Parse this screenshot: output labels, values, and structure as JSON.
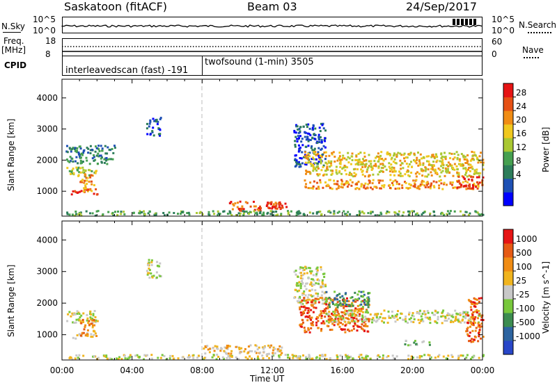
{
  "header": {
    "station": "Saskatoon (fitACF)",
    "beam": "Beam 03",
    "date": "24/Sep/2017"
  },
  "top_panels": {
    "nsky_label": "N.Sky",
    "nsky_ticks": [
      "10^5",
      "10^0"
    ],
    "nsearch_label": "N.Search",
    "nsearch_ticks": [
      "10^5",
      "10^0"
    ],
    "freq_label_1": "Freq.",
    "freq_label_2": "[MHz]",
    "freq_ticks": [
      "18",
      "8"
    ],
    "nave_label": "Nave",
    "nave_ticks": [
      "60",
      "0"
    ],
    "cpid_label": "CPID",
    "cpid_modes": [
      "interleavedscan (fast) -191",
      "twofsound (1-min) 3505"
    ]
  },
  "chart_data": [
    {
      "type": "heatmap",
      "title": "",
      "ylabel": "Slant Range [km]",
      "xlabel": "",
      "ylim": [
        200,
        4600
      ],
      "yticks": [
        1000,
        2000,
        3000,
        4000
      ],
      "xticks": [
        "00:00",
        "04:00",
        "08:00",
        "12:00",
        "16:00",
        "20:00",
        "00:00"
      ],
      "colorbar": {
        "label": "Power [dB]",
        "ticks": [
          "28",
          "24",
          "20",
          "16",
          "12",
          "8",
          "4"
        ],
        "colors": [
          "#0000ff",
          "#1e50b4",
          "#2d7d5a",
          "#46a050",
          "#aac832",
          "#f0c81e",
          "#f08c14",
          "#e65014",
          "#e61414"
        ]
      },
      "bands": [
        {
          "t0": 0.2,
          "t1": 2.0,
          "r0": 1500,
          "r1": 1800,
          "level": 4
        },
        {
          "t0": 0.5,
          "t1": 2.0,
          "r0": 900,
          "r1": 1100,
          "level": 8
        },
        {
          "t0": 1.0,
          "t1": 1.8,
          "r0": 1000,
          "r1": 1600,
          "level": 6
        },
        {
          "t0": 0.2,
          "t1": 3.0,
          "r0": 1900,
          "r1": 2500,
          "level": 2
        },
        {
          "t0": 4.8,
          "t1": 5.6,
          "r0": 2800,
          "r1": 3400,
          "level": 1
        },
        {
          "t0": 9.5,
          "t1": 12.5,
          "r0": 400,
          "r1": 700,
          "level": 7
        },
        {
          "t0": 11.5,
          "t1": 12.8,
          "r0": 450,
          "r1": 650,
          "level": 8
        },
        {
          "t0": 13.2,
          "t1": 15.0,
          "r0": 1800,
          "r1": 3200,
          "level": 1
        },
        {
          "t0": 13.8,
          "t1": 24.0,
          "r0": 1500,
          "r1": 2300,
          "level": 5
        },
        {
          "t0": 13.8,
          "t1": 24.0,
          "r0": 1100,
          "r1": 1400,
          "level": 6
        },
        {
          "t0": 22.5,
          "t1": 24.0,
          "r0": 1100,
          "r1": 1500,
          "level": 8
        },
        {
          "t0": 0.0,
          "t1": 24.0,
          "r0": 250,
          "r1": 400,
          "level": 3
        }
      ]
    },
    {
      "type": "heatmap",
      "title": "",
      "ylabel": "Slant Range [km]",
      "xlabel": "Time UT",
      "ylim": [
        200,
        4600
      ],
      "yticks": [
        1000,
        2000,
        3000,
        4000
      ],
      "xticks": [
        "00:00",
        "04:00",
        "08:00",
        "12:00",
        "16:00",
        "20:00",
        "00:00"
      ],
      "colorbar": {
        "label": "Velocity [m s^-1]",
        "ticks": [
          "1000",
          "500",
          "100",
          "25",
          "-25",
          "-100",
          "-500",
          "-1000"
        ],
        "colors": [
          "#2846c8",
          "#2d64a0",
          "#3c8c50",
          "#78c83c",
          "#c8c8c8",
          "#f0b41e",
          "#f08c14",
          "#e65a14",
          "#e61414"
        ]
      },
      "bands": [
        {
          "t0": 0.2,
          "t1": 2.0,
          "r0": 1400,
          "r1": 1800,
          "level": 4
        },
        {
          "t0": 0.5,
          "t1": 2.0,
          "r0": 900,
          "r1": 1100,
          "level": 5
        },
        {
          "t0": 1.0,
          "t1": 1.8,
          "r0": 1000,
          "r1": 1500,
          "level": 6
        },
        {
          "t0": 4.8,
          "t1": 5.6,
          "r0": 2800,
          "r1": 3400,
          "level": 4
        },
        {
          "t0": 8.0,
          "t1": 12.5,
          "r0": 400,
          "r1": 700,
          "level": 5
        },
        {
          "t0": 13.2,
          "t1": 15.0,
          "r0": 2000,
          "r1": 3200,
          "level": 4
        },
        {
          "t0": 13.5,
          "t1": 17.5,
          "r0": 1100,
          "r1": 2200,
          "level": 7
        },
        {
          "t0": 15.0,
          "t1": 17.5,
          "r0": 1900,
          "r1": 2400,
          "level": 2
        },
        {
          "t0": 15.0,
          "t1": 24.0,
          "r0": 1400,
          "r1": 1800,
          "level": 4
        },
        {
          "t0": 19.5,
          "t1": 21.0,
          "r0": 700,
          "r1": 850,
          "level": 3
        },
        {
          "t0": 23.0,
          "t1": 24.0,
          "r0": 800,
          "r1": 2200,
          "level": 7
        },
        {
          "t0": 0.0,
          "t1": 24.0,
          "r0": 250,
          "r1": 400,
          "level": 4
        }
      ]
    }
  ]
}
